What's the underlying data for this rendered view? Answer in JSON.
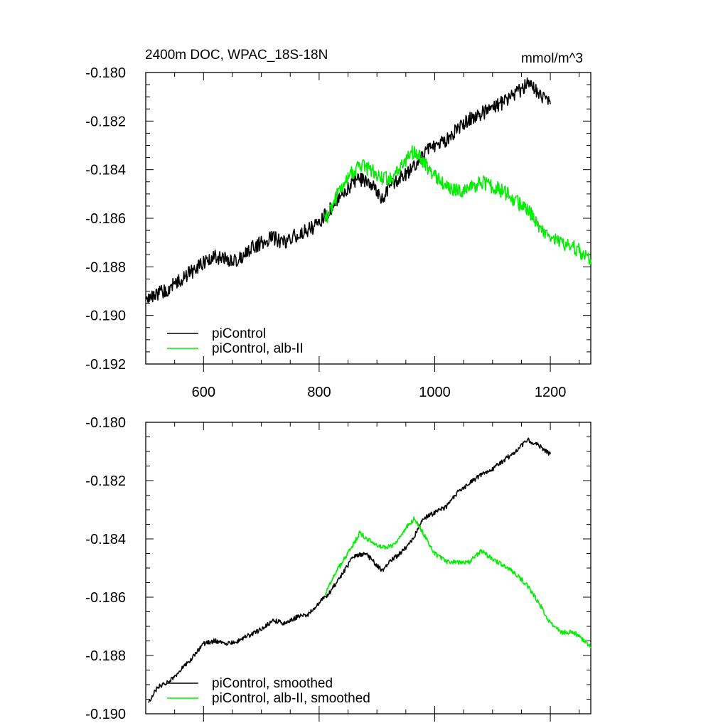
{
  "figure": {
    "title": "2400m DOC, WPAC_18S-18N",
    "units": "mmol/m^3"
  },
  "chart_data": [
    {
      "type": "line",
      "id": "raw",
      "title": "2400m DOC, WPAC_18S-18N",
      "units": "mmol/m^3",
      "xlim": [
        500,
        1270
      ],
      "ylim": [
        -0.192,
        -0.18
      ],
      "xticks": [
        600,
        800,
        1000,
        1200
      ],
      "xtick_labels": [
        "600",
        "800",
        "1000",
        "1200"
      ],
      "yticks": [
        -0.192,
        -0.19,
        -0.188,
        -0.186,
        -0.184,
        -0.182,
        -0.18
      ],
      "ytick_labels": [
        "-0.192",
        "-0.190",
        "-0.188",
        "-0.186",
        "-0.184",
        "-0.182",
        "-0.180"
      ],
      "legend_position": "bottom-left",
      "series": [
        {
          "name": "piControl",
          "color": "#000000",
          "x": [
            500,
            520,
            540,
            560,
            580,
            600,
            620,
            640,
            660,
            680,
            700,
            720,
            740,
            760,
            780,
            800,
            820,
            840,
            860,
            880,
            900,
            910,
            920,
            940,
            960,
            980,
            1000,
            1020,
            1040,
            1060,
            1080,
            1100,
            1120,
            1140,
            1160,
            1180,
            1200
          ],
          "y": [
            -0.1895,
            -0.1891,
            -0.1889,
            -0.1885,
            -0.1882,
            -0.1878,
            -0.1876,
            -0.1877,
            -0.1877,
            -0.1873,
            -0.187,
            -0.1868,
            -0.187,
            -0.1867,
            -0.1865,
            -0.1862,
            -0.1856,
            -0.185,
            -0.1845,
            -0.1844,
            -0.1848,
            -0.1853,
            -0.1847,
            -0.1843,
            -0.184,
            -0.1834,
            -0.183,
            -0.1828,
            -0.1823,
            -0.1819,
            -0.1817,
            -0.1815,
            -0.1812,
            -0.1809,
            -0.1805,
            -0.1808,
            -0.1813
          ],
          "noise": 0.0003
        },
        {
          "name": "piControl, alb-II",
          "color": "#00ee00",
          "x": [
            810,
            830,
            850,
            870,
            890,
            910,
            930,
            950,
            965,
            980,
            1000,
            1020,
            1040,
            1060,
            1080,
            1100,
            1120,
            1140,
            1160,
            1180,
            1200,
            1220,
            1240,
            1260,
            1270
          ],
          "y": [
            -0.1861,
            -0.1851,
            -0.1843,
            -0.1838,
            -0.184,
            -0.1844,
            -0.1843,
            -0.1836,
            -0.1832,
            -0.1837,
            -0.1843,
            -0.1847,
            -0.1849,
            -0.1848,
            -0.1845,
            -0.1847,
            -0.1849,
            -0.1853,
            -0.1856,
            -0.1863,
            -0.1868,
            -0.1871,
            -0.1872,
            -0.1875,
            -0.1877
          ],
          "noise": 0.0003
        }
      ]
    },
    {
      "type": "line",
      "id": "smoothed",
      "xlim": [
        500,
        1270
      ],
      "ylim": [
        -0.19,
        -0.18
      ],
      "xticks": [
        600,
        800,
        1000,
        1200
      ],
      "yticks": [
        -0.19,
        -0.188,
        -0.186,
        -0.184,
        -0.182,
        -0.18
      ],
      "ytick_labels": [
        "-0.190",
        "-0.188",
        "-0.186",
        "-0.184",
        "-0.182",
        "-0.180"
      ],
      "legend_position": "bottom-left",
      "series": [
        {
          "name": "piControl, smoothed",
          "color": "#000000",
          "x": [
            505,
            520,
            540,
            560,
            580,
            600,
            620,
            640,
            660,
            680,
            700,
            720,
            740,
            760,
            780,
            800,
            820,
            840,
            860,
            880,
            900,
            910,
            920,
            940,
            960,
            980,
            1000,
            1020,
            1040,
            1060,
            1080,
            1100,
            1120,
            1140,
            1160,
            1180,
            1200
          ],
          "y": [
            -0.1896,
            -0.1891,
            -0.1889,
            -0.1885,
            -0.1881,
            -0.1876,
            -0.1875,
            -0.1876,
            -0.1875,
            -0.1873,
            -0.1871,
            -0.1868,
            -0.1869,
            -0.1867,
            -0.1866,
            -0.1862,
            -0.1858,
            -0.1852,
            -0.1846,
            -0.1845,
            -0.1849,
            -0.1851,
            -0.1848,
            -0.1845,
            -0.1841,
            -0.1833,
            -0.1831,
            -0.1829,
            -0.1824,
            -0.1821,
            -0.1818,
            -0.1816,
            -0.1813,
            -0.181,
            -0.1806,
            -0.1808,
            -0.1811
          ],
          "noise": 8e-05
        },
        {
          "name": "piControl, alb-II, smoothed",
          "color": "#00ee00",
          "x": [
            810,
            830,
            850,
            870,
            890,
            910,
            930,
            950,
            965,
            980,
            1000,
            1020,
            1040,
            1060,
            1080,
            1100,
            1120,
            1140,
            1160,
            1180,
            1200,
            1220,
            1240,
            1260,
            1270
          ],
          "y": [
            -0.1859,
            -0.1851,
            -0.1845,
            -0.1838,
            -0.1841,
            -0.1843,
            -0.1842,
            -0.1836,
            -0.1833,
            -0.1838,
            -0.1845,
            -0.1848,
            -0.1848,
            -0.1848,
            -0.1844,
            -0.1847,
            -0.1849,
            -0.1852,
            -0.1856,
            -0.1862,
            -0.1869,
            -0.1872,
            -0.1872,
            -0.1875,
            -0.1877
          ],
          "noise": 8e-05
        }
      ]
    }
  ]
}
